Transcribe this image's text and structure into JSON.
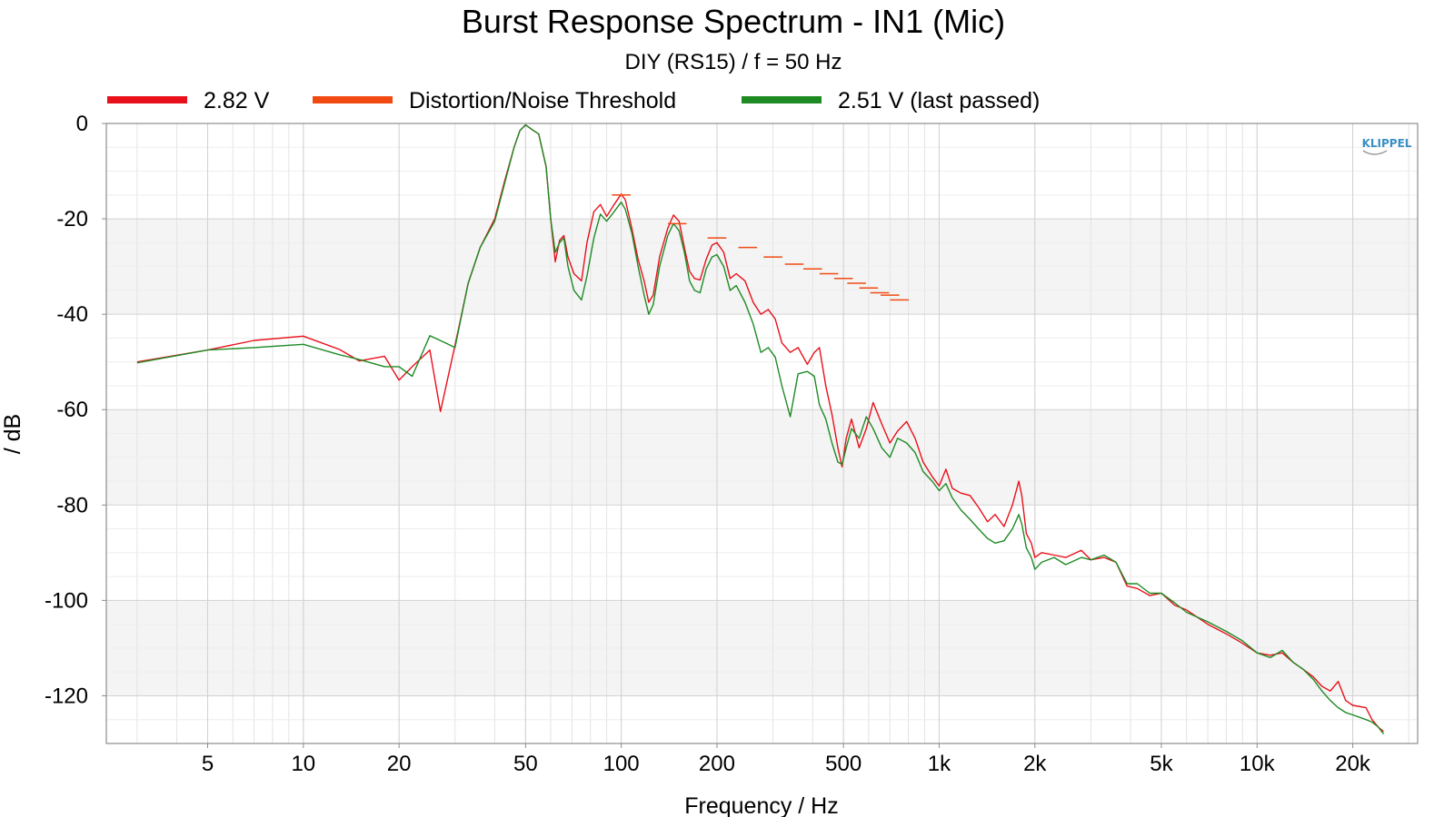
{
  "chart_data": {
    "type": "line",
    "title": "Burst Response Spectrum - IN1 (Mic)",
    "subtitle": "DIY (RS15) / f = 50 Hz",
    "xlabel": "Frequency / Hz",
    "ylabel": "/ dB",
    "x_scale": "log",
    "xlim": [
      2.4,
      32000
    ],
    "ylim": [
      -130,
      0
    ],
    "x_ticks": [
      {
        "value": 5,
        "label": "5"
      },
      {
        "value": 10,
        "label": "10"
      },
      {
        "value": 20,
        "label": "20"
      },
      {
        "value": 50,
        "label": "50"
      },
      {
        "value": 100,
        "label": "100"
      },
      {
        "value": 200,
        "label": "200"
      },
      {
        "value": 500,
        "label": "500"
      },
      {
        "value": 1000,
        "label": "1k"
      },
      {
        "value": 2000,
        "label": "2k"
      },
      {
        "value": 5000,
        "label": "5k"
      },
      {
        "value": 10000,
        "label": "10k"
      },
      {
        "value": 20000,
        "label": "20k"
      }
    ],
    "y_ticks": [
      {
        "value": 0,
        "label": "0"
      },
      {
        "value": -20,
        "label": "-20"
      },
      {
        "value": -40,
        "label": "-40"
      },
      {
        "value": -60,
        "label": "-60"
      },
      {
        "value": -80,
        "label": "-80"
      },
      {
        "value": -100,
        "label": "-100"
      },
      {
        "value": -120,
        "label": "-120"
      }
    ],
    "grid": true,
    "legend_position": "top",
    "brand": "KLIPPEL",
    "series": [
      {
        "name": "2.82 V",
        "color": "#e8101a",
        "style": "line",
        "points": [
          [
            3,
            -50
          ],
          [
            5,
            -47.5
          ],
          [
            7,
            -45.5
          ],
          [
            10,
            -44.6
          ],
          [
            13,
            -47.4
          ],
          [
            15,
            -49.8
          ],
          [
            18,
            -48.8
          ],
          [
            20,
            -53.8
          ],
          [
            22,
            -51
          ],
          [
            25,
            -47.5
          ],
          [
            27,
            -60.4
          ],
          [
            30,
            -46.5
          ],
          [
            33,
            -33.5
          ],
          [
            36,
            -26
          ],
          [
            40,
            -20
          ],
          [
            43,
            -12
          ],
          [
            46,
            -5
          ],
          [
            48,
            -1.5
          ],
          [
            50,
            -0.3
          ],
          [
            53,
            -1.5
          ],
          [
            55,
            -2.2
          ],
          [
            58,
            -9
          ],
          [
            60,
            -20
          ],
          [
            62,
            -29
          ],
          [
            64,
            -24.5
          ],
          [
            66,
            -23.5
          ],
          [
            68,
            -28
          ],
          [
            71,
            -31.5
          ],
          [
            75,
            -33
          ],
          [
            78,
            -25
          ],
          [
            82,
            -18.5
          ],
          [
            86,
            -17
          ],
          [
            90,
            -19.5
          ],
          [
            95,
            -17
          ],
          [
            100,
            -14.8
          ],
          [
            103,
            -16
          ],
          [
            108,
            -22
          ],
          [
            113,
            -28.5
          ],
          [
            118,
            -33
          ],
          [
            122,
            -37.5
          ],
          [
            126,
            -36
          ],
          [
            132,
            -28
          ],
          [
            140,
            -22
          ],
          [
            146,
            -19.2
          ],
          [
            152,
            -20.5
          ],
          [
            158,
            -26
          ],
          [
            164,
            -31
          ],
          [
            170,
            -32.5
          ],
          [
            177,
            -32.8
          ],
          [
            185,
            -28.5
          ],
          [
            193,
            -25.5
          ],
          [
            200,
            -25
          ],
          [
            210,
            -27
          ],
          [
            220,
            -32.5
          ],
          [
            230,
            -31.5
          ],
          [
            245,
            -33
          ],
          [
            260,
            -37.5
          ],
          [
            275,
            -40
          ],
          [
            290,
            -39
          ],
          [
            305,
            -41
          ],
          [
            320,
            -46
          ],
          [
            340,
            -48
          ],
          [
            360,
            -47
          ],
          [
            385,
            -50.5
          ],
          [
            405,
            -48
          ],
          [
            420,
            -47
          ],
          [
            440,
            -55
          ],
          [
            460,
            -61
          ],
          [
            480,
            -68
          ],
          [
            495,
            -72
          ],
          [
            510,
            -66
          ],
          [
            530,
            -62
          ],
          [
            560,
            -68
          ],
          [
            590,
            -64
          ],
          [
            620,
            -58.5
          ],
          [
            660,
            -63
          ],
          [
            700,
            -67
          ],
          [
            740,
            -64.5
          ],
          [
            790,
            -62.5
          ],
          [
            840,
            -66
          ],
          [
            890,
            -71
          ],
          [
            950,
            -74
          ],
          [
            1000,
            -76
          ],
          [
            1050,
            -72.5
          ],
          [
            1100,
            -76.5
          ],
          [
            1170,
            -77.5
          ],
          [
            1250,
            -78
          ],
          [
            1330,
            -80.5
          ],
          [
            1420,
            -83.5
          ],
          [
            1500,
            -82
          ],
          [
            1600,
            -84.5
          ],
          [
            1700,
            -80
          ],
          [
            1780,
            -75
          ],
          [
            1820,
            -78
          ],
          [
            1880,
            -86
          ],
          [
            1950,
            -88
          ],
          [
            2000,
            -91
          ],
          [
            2100,
            -90
          ],
          [
            2300,
            -90.5
          ],
          [
            2500,
            -91
          ],
          [
            2800,
            -89.5
          ],
          [
            3000,
            -91.5
          ],
          [
            3300,
            -91
          ],
          [
            3600,
            -92
          ],
          [
            3900,
            -97
          ],
          [
            4200,
            -97.5
          ],
          [
            4600,
            -99
          ],
          [
            5000,
            -98.5
          ],
          [
            5500,
            -101
          ],
          [
            6000,
            -102
          ],
          [
            7000,
            -105
          ],
          [
            8000,
            -107
          ],
          [
            9000,
            -109
          ],
          [
            10000,
            -111
          ],
          [
            11000,
            -111.5
          ],
          [
            12000,
            -111
          ],
          [
            13000,
            -113
          ],
          [
            14000,
            -114.5
          ],
          [
            15000,
            -116
          ],
          [
            16000,
            -118
          ],
          [
            17000,
            -119
          ],
          [
            18000,
            -117
          ],
          [
            19000,
            -121
          ],
          [
            20000,
            -122
          ],
          [
            22000,
            -122.5
          ],
          [
            23000,
            -125
          ],
          [
            24000,
            -126.5
          ],
          [
            25000,
            -127.5
          ]
        ]
      },
      {
        "name": "Distortion/Noise Threshold",
        "color": "#f04a12",
        "style": "segments",
        "points": [
          [
            100,
            -15
          ],
          [
            150,
            -21
          ],
          [
            200,
            -24
          ],
          [
            250,
            -26
          ],
          [
            300,
            -28
          ],
          [
            350,
            -29.5
          ],
          [
            400,
            -30.5
          ],
          [
            450,
            -31.5
          ],
          [
            500,
            -32.5
          ],
          [
            550,
            -33.5
          ],
          [
            600,
            -34.5
          ],
          [
            650,
            -35.5
          ],
          [
            700,
            -36
          ],
          [
            750,
            -37
          ]
        ]
      },
      {
        "name": "2.51 V (last passed)",
        "color": "#1e8a24",
        "style": "line",
        "points": [
          [
            3,
            -50.2
          ],
          [
            5,
            -47.5
          ],
          [
            7,
            -47
          ],
          [
            10,
            -46.3
          ],
          [
            13,
            -48.5
          ],
          [
            15,
            -49.5
          ],
          [
            18,
            -51
          ],
          [
            20,
            -51
          ],
          [
            22,
            -53
          ],
          [
            25,
            -44.5
          ],
          [
            28,
            -46
          ],
          [
            30,
            -47
          ],
          [
            33,
            -33.5
          ],
          [
            36,
            -26
          ],
          [
            40,
            -20.5
          ],
          [
            43,
            -12.5
          ],
          [
            46,
            -5
          ],
          [
            48,
            -1.5
          ],
          [
            50,
            -0.3
          ],
          [
            53,
            -1.5
          ],
          [
            55,
            -2.2
          ],
          [
            58,
            -9
          ],
          [
            60,
            -20
          ],
          [
            62,
            -27
          ],
          [
            64,
            -25
          ],
          [
            66,
            -24
          ],
          [
            68,
            -30
          ],
          [
            71,
            -35
          ],
          [
            75,
            -37
          ],
          [
            78,
            -32
          ],
          [
            82,
            -24
          ],
          [
            86,
            -19
          ],
          [
            90,
            -20.5
          ],
          [
            95,
            -18.5
          ],
          [
            100,
            -16.5
          ],
          [
            103,
            -18
          ],
          [
            108,
            -23
          ],
          [
            113,
            -30
          ],
          [
            118,
            -36
          ],
          [
            122,
            -40
          ],
          [
            126,
            -38
          ],
          [
            132,
            -30
          ],
          [
            140,
            -23.5
          ],
          [
            146,
            -21
          ],
          [
            152,
            -22.5
          ],
          [
            158,
            -27
          ],
          [
            164,
            -33
          ],
          [
            170,
            -35
          ],
          [
            177,
            -35.5
          ],
          [
            185,
            -30.5
          ],
          [
            193,
            -28
          ],
          [
            200,
            -27.5
          ],
          [
            210,
            -30
          ],
          [
            220,
            -35
          ],
          [
            230,
            -34
          ],
          [
            245,
            -37.5
          ],
          [
            260,
            -42
          ],
          [
            275,
            -48
          ],
          [
            290,
            -47
          ],
          [
            305,
            -49
          ],
          [
            320,
            -55
          ],
          [
            340,
            -61.5
          ],
          [
            360,
            -52.5
          ],
          [
            385,
            -52
          ],
          [
            405,
            -53
          ],
          [
            420,
            -59
          ],
          [
            440,
            -62
          ],
          [
            460,
            -67
          ],
          [
            480,
            -71
          ],
          [
            495,
            -71.5
          ],
          [
            510,
            -68
          ],
          [
            530,
            -64
          ],
          [
            560,
            -66
          ],
          [
            590,
            -61.5
          ],
          [
            620,
            -64
          ],
          [
            660,
            -68
          ],
          [
            700,
            -70
          ],
          [
            740,
            -66
          ],
          [
            790,
            -67
          ],
          [
            840,
            -69
          ],
          [
            890,
            -73
          ],
          [
            950,
            -75
          ],
          [
            1000,
            -77
          ],
          [
            1050,
            -75.5
          ],
          [
            1100,
            -78.5
          ],
          [
            1170,
            -81
          ],
          [
            1250,
            -83
          ],
          [
            1330,
            -85
          ],
          [
            1420,
            -87
          ],
          [
            1500,
            -88
          ],
          [
            1600,
            -87.5
          ],
          [
            1700,
            -85
          ],
          [
            1780,
            -82
          ],
          [
            1820,
            -84
          ],
          [
            1880,
            -89
          ],
          [
            1950,
            -91
          ],
          [
            2000,
            -93.5
          ],
          [
            2100,
            -92
          ],
          [
            2300,
            -91
          ],
          [
            2500,
            -92.5
          ],
          [
            2800,
            -91
          ],
          [
            3000,
            -91.5
          ],
          [
            3300,
            -90.5
          ],
          [
            3600,
            -92
          ],
          [
            3900,
            -96.5
          ],
          [
            4200,
            -96.5
          ],
          [
            4600,
            -98.5
          ],
          [
            5000,
            -98.5
          ],
          [
            5500,
            -100.5
          ],
          [
            6000,
            -102.5
          ],
          [
            7000,
            -104.5
          ],
          [
            8000,
            -106.5
          ],
          [
            9000,
            -108.5
          ],
          [
            10000,
            -111
          ],
          [
            11000,
            -112
          ],
          [
            12000,
            -110.5
          ],
          [
            13000,
            -113
          ],
          [
            14000,
            -114.5
          ],
          [
            15000,
            -116.5
          ],
          [
            16000,
            -119
          ],
          [
            17000,
            -121
          ],
          [
            18000,
            -122.5
          ],
          [
            19000,
            -123.5
          ],
          [
            20000,
            -124
          ],
          [
            22000,
            -125
          ],
          [
            23000,
            -125.5
          ],
          [
            24000,
            -126.5
          ],
          [
            25000,
            -128
          ]
        ]
      }
    ]
  }
}
